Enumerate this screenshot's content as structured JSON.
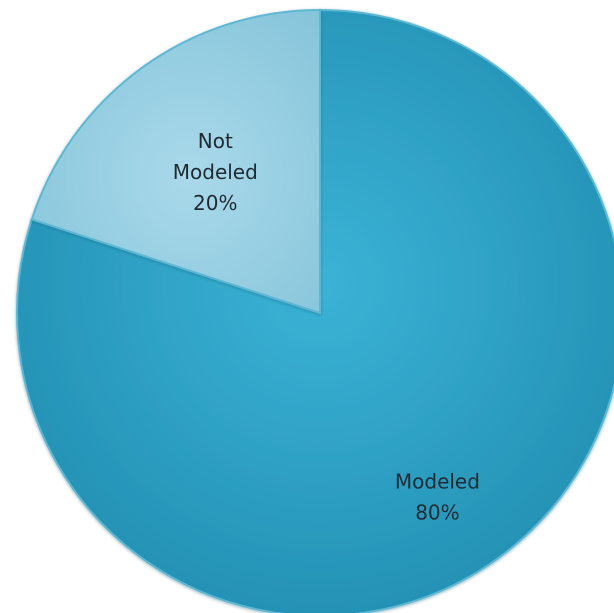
{
  "chart_data": {
    "type": "pie",
    "title": "",
    "start_angle_deg": 0,
    "direction": "clockwise",
    "slices": [
      {
        "label_lines": [
          "Modeled",
          "80%"
        ],
        "value": 80,
        "color": "#2fa3c6"
      },
      {
        "label_lines": [
          "Not",
          "Modeled",
          "20%"
        ],
        "value": 20,
        "color": "#9ad0e2"
      }
    ],
    "legend": "none",
    "data_labels": "inside"
  }
}
